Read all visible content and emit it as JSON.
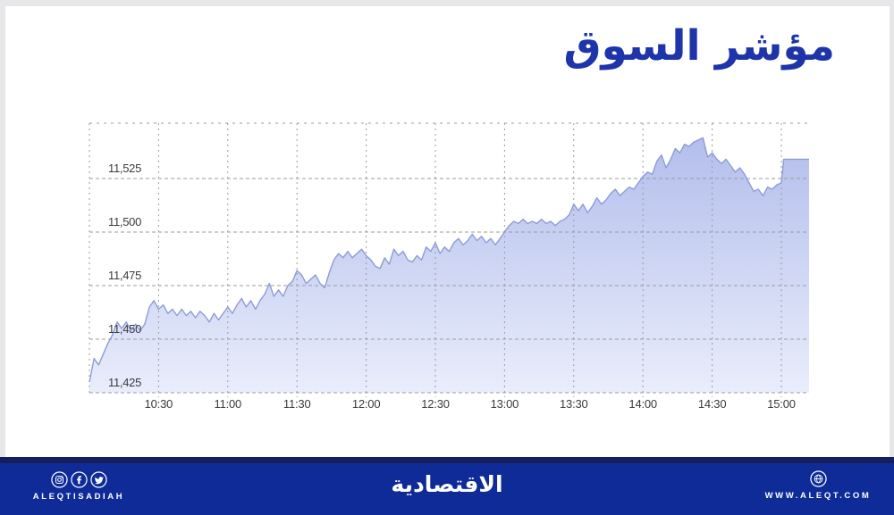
{
  "page": {
    "background": "#e7e7e9",
    "card_background": "#ffffff"
  },
  "header": {
    "title": "مؤشر السوق",
    "title_color": "#1d34aa"
  },
  "chart_data": {
    "type": "area",
    "title": "مؤشر السوق",
    "xlabel": "",
    "ylabel": "",
    "grid": true,
    "legend": false,
    "x_domain": [
      "10:00",
      "15:12"
    ],
    "ylim": [
      11425,
      11551
    ],
    "x_tick_labels": [
      "10:30",
      "11:00",
      "11:30",
      "12:00",
      "12:30",
      "13:00",
      "13:30",
      "14:00",
      "14:30",
      "15:00"
    ],
    "y_ticks": [
      [
        11425,
        "11,425"
      ],
      [
        11450,
        "11,450"
      ],
      [
        11475,
        "11,475"
      ],
      [
        11500,
        "11,500"
      ],
      [
        11525,
        "11,525"
      ]
    ],
    "colors": {
      "line": "#8e9bd8",
      "fill_top": "#b3beec",
      "fill_bottom": "#e9edfb",
      "grid": "#9b9ba1",
      "tick_text": "#3a3a3e"
    },
    "series": [
      {
        "name": "مؤشر السوق",
        "points": [
          [
            "10:00",
            11430
          ],
          [
            "10:02",
            11441
          ],
          [
            "10:04",
            11438
          ],
          [
            "10:06",
            11443
          ],
          [
            "10:08",
            11448
          ],
          [
            "10:10",
            11452
          ],
          [
            "10:12",
            11458
          ],
          [
            "10:14",
            11455
          ],
          [
            "10:16",
            11458
          ],
          [
            "10:18",
            11454
          ],
          [
            "10:20",
            11457
          ],
          [
            "10:22",
            11454
          ],
          [
            "10:24",
            11457
          ],
          [
            "10:26",
            11465
          ],
          [
            "10:28",
            11468
          ],
          [
            "10:30",
            11464
          ],
          [
            "10:32",
            11466
          ],
          [
            "10:34",
            11462
          ],
          [
            "10:36",
            11464
          ],
          [
            "10:38",
            11461
          ],
          [
            "10:40",
            11464
          ],
          [
            "10:42",
            11461
          ],
          [
            "10:44",
            11463
          ],
          [
            "10:46",
            11460
          ],
          [
            "10:48",
            11463
          ],
          [
            "10:50",
            11461
          ],
          [
            "10:52",
            11458
          ],
          [
            "10:54",
            11462
          ],
          [
            "10:56",
            11459
          ],
          [
            "10:58",
            11462
          ],
          [
            "11:00",
            11465
          ],
          [
            "11:02",
            11462
          ],
          [
            "11:04",
            11466
          ],
          [
            "11:06",
            11469
          ],
          [
            "11:08",
            11465
          ],
          [
            "11:10",
            11468
          ],
          [
            "11:12",
            11464
          ],
          [
            "11:14",
            11468
          ],
          [
            "11:16",
            11471
          ],
          [
            "11:18",
            11476
          ],
          [
            "11:20",
            11470
          ],
          [
            "11:22",
            11473
          ],
          [
            "11:24",
            11470
          ],
          [
            "11:26",
            11475
          ],
          [
            "11:28",
            11477
          ],
          [
            "11:30",
            11482
          ],
          [
            "11:32",
            11480
          ],
          [
            "11:34",
            11476
          ],
          [
            "11:36",
            11478
          ],
          [
            "11:38",
            11480
          ],
          [
            "11:40",
            11476
          ],
          [
            "11:42",
            11474
          ],
          [
            "11:44",
            11481
          ],
          [
            "11:46",
            11487
          ],
          [
            "11:48",
            11490
          ],
          [
            "11:50",
            11488
          ],
          [
            "11:52",
            11491
          ],
          [
            "11:54",
            11488
          ],
          [
            "11:56",
            11490
          ],
          [
            "11:58",
            11492
          ],
          [
            "12:00",
            11489
          ],
          [
            "12:02",
            11487
          ],
          [
            "12:04",
            11484
          ],
          [
            "12:06",
            11483
          ],
          [
            "12:08",
            11488
          ],
          [
            "12:10",
            11485
          ],
          [
            "12:12",
            11492
          ],
          [
            "12:14",
            11489
          ],
          [
            "12:16",
            11491
          ],
          [
            "12:18",
            11487
          ],
          [
            "12:20",
            11486
          ],
          [
            "12:22",
            11489
          ],
          [
            "12:24",
            11487
          ],
          [
            "12:26",
            11493
          ],
          [
            "12:28",
            11491
          ],
          [
            "12:30",
            11495
          ],
          [
            "12:32",
            11490
          ],
          [
            "12:34",
            11493
          ],
          [
            "12:36",
            11491
          ],
          [
            "12:38",
            11495
          ],
          [
            "12:40",
            11497
          ],
          [
            "12:42",
            11494
          ],
          [
            "12:44",
            11496
          ],
          [
            "12:46",
            11499
          ],
          [
            "12:48",
            11496
          ],
          [
            "12:50",
            11498
          ],
          [
            "12:52",
            11495
          ],
          [
            "12:54",
            11497
          ],
          [
            "12:56",
            11494
          ],
          [
            "12:58",
            11497
          ],
          [
            "13:00",
            11500
          ],
          [
            "13:02",
            11503
          ],
          [
            "13:04",
            11505
          ],
          [
            "13:06",
            11504
          ],
          [
            "13:08",
            11506
          ],
          [
            "13:10",
            11504
          ],
          [
            "13:12",
            11505
          ],
          [
            "13:14",
            11504
          ],
          [
            "13:16",
            11506
          ],
          [
            "13:18",
            11504
          ],
          [
            "13:20",
            11505
          ],
          [
            "13:22",
            11503
          ],
          [
            "13:24",
            11505
          ],
          [
            "13:26",
            11506
          ],
          [
            "13:28",
            11508
          ],
          [
            "13:30",
            11513
          ],
          [
            "13:32",
            11510
          ],
          [
            "13:34",
            11513
          ],
          [
            "13:36",
            11509
          ],
          [
            "13:38",
            11512
          ],
          [
            "13:40",
            11516
          ],
          [
            "13:42",
            11513
          ],
          [
            "13:44",
            11515
          ],
          [
            "13:46",
            11518
          ],
          [
            "13:48",
            11520
          ],
          [
            "13:50",
            11517
          ],
          [
            "13:52",
            11519
          ],
          [
            "13:54",
            11521
          ],
          [
            "13:56",
            11520
          ],
          [
            "13:58",
            11523
          ],
          [
            "14:00",
            11526
          ],
          [
            "14:02",
            11528
          ],
          [
            "14:04",
            11527
          ],
          [
            "14:06",
            11533
          ],
          [
            "14:08",
            11536
          ],
          [
            "14:10",
            11530
          ],
          [
            "14:12",
            11534
          ],
          [
            "14:14",
            11539
          ],
          [
            "14:16",
            11537
          ],
          [
            "14:18",
            11541
          ],
          [
            "14:20",
            11540
          ],
          [
            "14:22",
            11542
          ],
          [
            "14:24",
            11543
          ],
          [
            "14:26",
            11544
          ],
          [
            "14:28",
            11535
          ],
          [
            "14:30",
            11537
          ],
          [
            "14:32",
            11534
          ],
          [
            "14:34",
            11532
          ],
          [
            "14:36",
            11534
          ],
          [
            "14:38",
            11531
          ],
          [
            "14:40",
            11528
          ],
          [
            "14:42",
            11530
          ],
          [
            "14:44",
            11527
          ],
          [
            "14:46",
            11523
          ],
          [
            "14:48",
            11519
          ],
          [
            "14:50",
            11520
          ],
          [
            "14:52",
            11517
          ],
          [
            "14:54",
            11521
          ],
          [
            "14:56",
            11520
          ],
          [
            "14:58",
            11522
          ],
          [
            "15:00",
            11523
          ],
          [
            "15:01",
            11534
          ],
          [
            "15:12",
            11534
          ]
        ]
      }
    ]
  },
  "footer": {
    "background": "#0e2b98",
    "top_strip_color": "#151f5c",
    "text_color": "#ffffff",
    "brand_latin": "ALEQTISADIAH",
    "brand_arabic": "الاقتصادية",
    "website": "WWW.ALEQT.COM",
    "social_icons": [
      "instagram-icon",
      "facebook-icon",
      "twitter-icon"
    ],
    "website_icon": "globe-icon"
  }
}
